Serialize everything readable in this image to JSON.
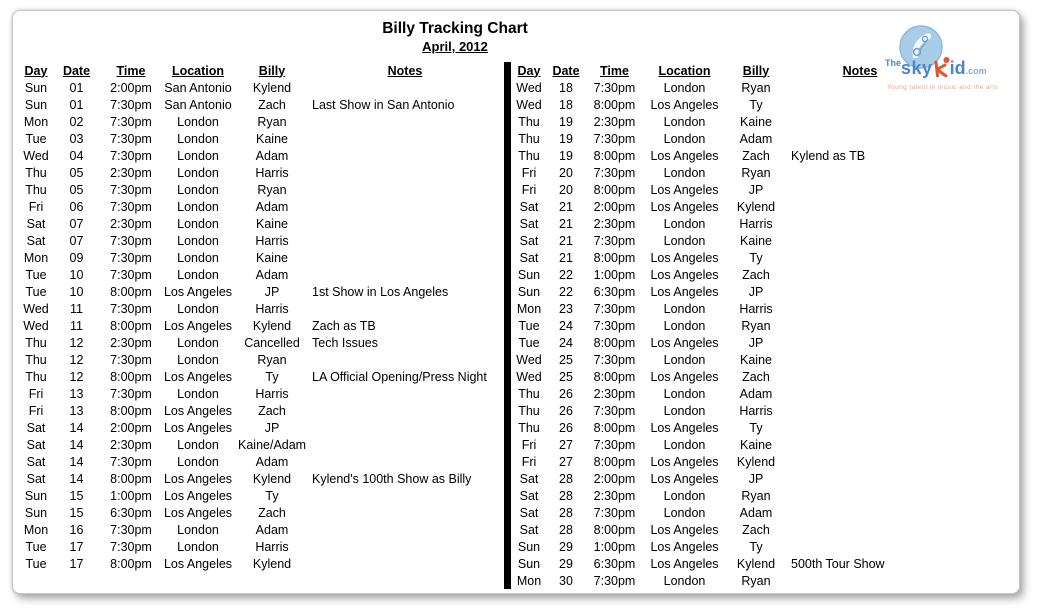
{
  "page": {
    "title": "Billy Tracking Chart",
    "subtitle": "April, 2012"
  },
  "logo": {
    "the": "The",
    "sky": "sky",
    "id": "id",
    "dotcom": ".com",
    "tagline": "Young talent in music and the arts",
    "colors": {
      "blue": "#4a86c8",
      "light_blue_circle": "#a9cde9",
      "orange": "#e8542a",
      "tagline_pink": "#f0a38e"
    }
  },
  "columns": [
    "Day",
    "Date",
    "Time",
    "Location",
    "Billy",
    "Notes"
  ],
  "row_fields": [
    "day",
    "date",
    "time",
    "location",
    "billy",
    "notes"
  ],
  "left_table": {
    "rows": [
      {
        "day": "Sun",
        "date": "01",
        "time": "2:00pm",
        "location": "San Antonio",
        "billy": "Kylend",
        "notes": ""
      },
      {
        "day": "Sun",
        "date": "01",
        "time": "7:30pm",
        "location": "San Antonio",
        "billy": "Zach",
        "notes": "Last Show in San Antonio"
      },
      {
        "day": "Mon",
        "date": "02",
        "time": "7:30pm",
        "location": "London",
        "billy": "Ryan",
        "notes": ""
      },
      {
        "day": "Tue",
        "date": "03",
        "time": "7:30pm",
        "location": "London",
        "billy": "Kaine",
        "notes": ""
      },
      {
        "day": "Wed",
        "date": "04",
        "time": "7:30pm",
        "location": "London",
        "billy": "Adam",
        "notes": ""
      },
      {
        "day": "Thu",
        "date": "05",
        "time": "2:30pm",
        "location": "London",
        "billy": "Harris",
        "notes": ""
      },
      {
        "day": "Thu",
        "date": "05",
        "time": "7:30pm",
        "location": "London",
        "billy": "Ryan",
        "notes": ""
      },
      {
        "day": "Fri",
        "date": "06",
        "time": "7:30pm",
        "location": "London",
        "billy": "Adam",
        "notes": ""
      },
      {
        "day": "Sat",
        "date": "07",
        "time": "2:30pm",
        "location": "London",
        "billy": "Kaine",
        "notes": ""
      },
      {
        "day": "Sat",
        "date": "07",
        "time": "7:30pm",
        "location": "London",
        "billy": "Harris",
        "notes": ""
      },
      {
        "day": "Mon",
        "date": "09",
        "time": "7:30pm",
        "location": "London",
        "billy": "Kaine",
        "notes": ""
      },
      {
        "day": "Tue",
        "date": "10",
        "time": "7:30pm",
        "location": "London",
        "billy": "Adam",
        "notes": ""
      },
      {
        "day": "Tue",
        "date": "10",
        "time": "8:00pm",
        "location": "Los Angeles",
        "billy": "JP",
        "notes": "1st Show in Los Angeles"
      },
      {
        "day": "Wed",
        "date": "11",
        "time": "7:30pm",
        "location": "London",
        "billy": "Harris",
        "notes": ""
      },
      {
        "day": "Wed",
        "date": "11",
        "time": "8:00pm",
        "location": "Los Angeles",
        "billy": "Kylend",
        "notes": "Zach as TB"
      },
      {
        "day": "Thu",
        "date": "12",
        "time": "2:30pm",
        "location": "London",
        "billy": "Cancelled",
        "notes": "Tech Issues"
      },
      {
        "day": "Thu",
        "date": "12",
        "time": "7:30pm",
        "location": "London",
        "billy": "Ryan",
        "notes": ""
      },
      {
        "day": "Thu",
        "date": "12",
        "time": "8:00pm",
        "location": "Los Angeles",
        "billy": "Ty",
        "notes": "LA Official Opening/Press Night"
      },
      {
        "day": "Fri",
        "date": "13",
        "time": "7:30pm",
        "location": "London",
        "billy": "Harris",
        "notes": ""
      },
      {
        "day": "Fri",
        "date": "13",
        "time": "8:00pm",
        "location": "Los Angeles",
        "billy": "Zach",
        "notes": ""
      },
      {
        "day": "Sat",
        "date": "14",
        "time": "2:00pm",
        "location": "Los Angeles",
        "billy": "JP",
        "notes": ""
      },
      {
        "day": "Sat",
        "date": "14",
        "time": "2:30pm",
        "location": "London",
        "billy": "Kaine/Adam",
        "notes": ""
      },
      {
        "day": "Sat",
        "date": "14",
        "time": "7:30pm",
        "location": "London",
        "billy": "Adam",
        "notes": ""
      },
      {
        "day": "Sat",
        "date": "14",
        "time": "8:00pm",
        "location": "Los Angeles",
        "billy": "Kylend",
        "notes": "Kylend's 100th Show as Billy"
      },
      {
        "day": "Sun",
        "date": "15",
        "time": "1:00pm",
        "location": "Los Angeles",
        "billy": "Ty",
        "notes": ""
      },
      {
        "day": "Sun",
        "date": "15",
        "time": "6:30pm",
        "location": "Los Angeles",
        "billy": "Zach",
        "notes": ""
      },
      {
        "day": "Mon",
        "date": "16",
        "time": "7:30pm",
        "location": "London",
        "billy": "Adam",
        "notes": ""
      },
      {
        "day": "Tue",
        "date": "17",
        "time": "7:30pm",
        "location": "London",
        "billy": "Harris",
        "notes": ""
      },
      {
        "day": "Tue",
        "date": "17",
        "time": "8:00pm",
        "location": "Los Angeles",
        "billy": "Kylend",
        "notes": ""
      }
    ]
  },
  "right_table": {
    "rows": [
      {
        "day": "Wed",
        "date": "18",
        "time": "7:30pm",
        "location": "London",
        "billy": "Ryan",
        "notes": ""
      },
      {
        "day": "Wed",
        "date": "18",
        "time": "8:00pm",
        "location": "Los Angeles",
        "billy": "Ty",
        "notes": ""
      },
      {
        "day": "Thu",
        "date": "19",
        "time": "2:30pm",
        "location": "London",
        "billy": "Kaine",
        "notes": ""
      },
      {
        "day": "Thu",
        "date": "19",
        "time": "7:30pm",
        "location": "London",
        "billy": "Adam",
        "notes": ""
      },
      {
        "day": "Thu",
        "date": "19",
        "time": "8:00pm",
        "location": "Los Angeles",
        "billy": "Zach",
        "notes": "Kylend as TB"
      },
      {
        "day": "Fri",
        "date": "20",
        "time": "7:30pm",
        "location": "London",
        "billy": "Ryan",
        "notes": ""
      },
      {
        "day": "Fri",
        "date": "20",
        "time": "8:00pm",
        "location": "Los Angeles",
        "billy": "JP",
        "notes": ""
      },
      {
        "day": "Sat",
        "date": "21",
        "time": "2:00pm",
        "location": "Los Angeles",
        "billy": "Kylend",
        "notes": ""
      },
      {
        "day": "Sat",
        "date": "21",
        "time": "2:30pm",
        "location": "London",
        "billy": "Harris",
        "notes": ""
      },
      {
        "day": "Sat",
        "date": "21",
        "time": "7:30pm",
        "location": "London",
        "billy": "Kaine",
        "notes": ""
      },
      {
        "day": "Sat",
        "date": "21",
        "time": "8:00pm",
        "location": "Los Angeles",
        "billy": "Ty",
        "notes": ""
      },
      {
        "day": "Sun",
        "date": "22",
        "time": "1:00pm",
        "location": "Los Angeles",
        "billy": "Zach",
        "notes": ""
      },
      {
        "day": "Sun",
        "date": "22",
        "time": "6:30pm",
        "location": "Los Angeles",
        "billy": "JP",
        "notes": ""
      },
      {
        "day": "Mon",
        "date": "23",
        "time": "7:30pm",
        "location": "London",
        "billy": "Harris",
        "notes": ""
      },
      {
        "day": "Tue",
        "date": "24",
        "time": "7:30pm",
        "location": "London",
        "billy": "Ryan",
        "notes": ""
      },
      {
        "day": "Tue",
        "date": "24",
        "time": "8:00pm",
        "location": "Los Angeles",
        "billy": "JP",
        "notes": ""
      },
      {
        "day": "Wed",
        "date": "25",
        "time": "7:30pm",
        "location": "London",
        "billy": "Kaine",
        "notes": ""
      },
      {
        "day": "Wed",
        "date": "25",
        "time": "8:00pm",
        "location": "Los Angeles",
        "billy": "Zach",
        "notes": ""
      },
      {
        "day": "Thu",
        "date": "26",
        "time": "2:30pm",
        "location": "London",
        "billy": "Adam",
        "notes": ""
      },
      {
        "day": "Thu",
        "date": "26",
        "time": "7:30pm",
        "location": "London",
        "billy": "Harris",
        "notes": ""
      },
      {
        "day": "Thu",
        "date": "26",
        "time": "8:00pm",
        "location": "Los Angeles",
        "billy": "Ty",
        "notes": ""
      },
      {
        "day": "Fri",
        "date": "27",
        "time": "7:30pm",
        "location": "London",
        "billy": "Kaine",
        "notes": ""
      },
      {
        "day": "Fri",
        "date": "27",
        "time": "8:00pm",
        "location": "Los Angeles",
        "billy": "Kylend",
        "notes": ""
      },
      {
        "day": "Sat",
        "date": "28",
        "time": "2:00pm",
        "location": "Los Angeles",
        "billy": "JP",
        "notes": ""
      },
      {
        "day": "Sat",
        "date": "28",
        "time": "2:30pm",
        "location": "London",
        "billy": "Ryan",
        "notes": ""
      },
      {
        "day": "Sat",
        "date": "28",
        "time": "7:30pm",
        "location": "London",
        "billy": "Adam",
        "notes": ""
      },
      {
        "day": "Sat",
        "date": "28",
        "time": "8:00pm",
        "location": "Los Angeles",
        "billy": "Zach",
        "notes": ""
      },
      {
        "day": "Sun",
        "date": "29",
        "time": "1:00pm",
        "location": "Los Angeles",
        "billy": "Ty",
        "notes": ""
      },
      {
        "day": "Sun",
        "date": "29",
        "time": "6:30pm",
        "location": "Los Angeles",
        "billy": "Kylend",
        "notes": "500th Tour Show"
      },
      {
        "day": "Mon",
        "date": "30",
        "time": "7:30pm",
        "location": "London",
        "billy": "Ryan",
        "notes": ""
      }
    ]
  }
}
